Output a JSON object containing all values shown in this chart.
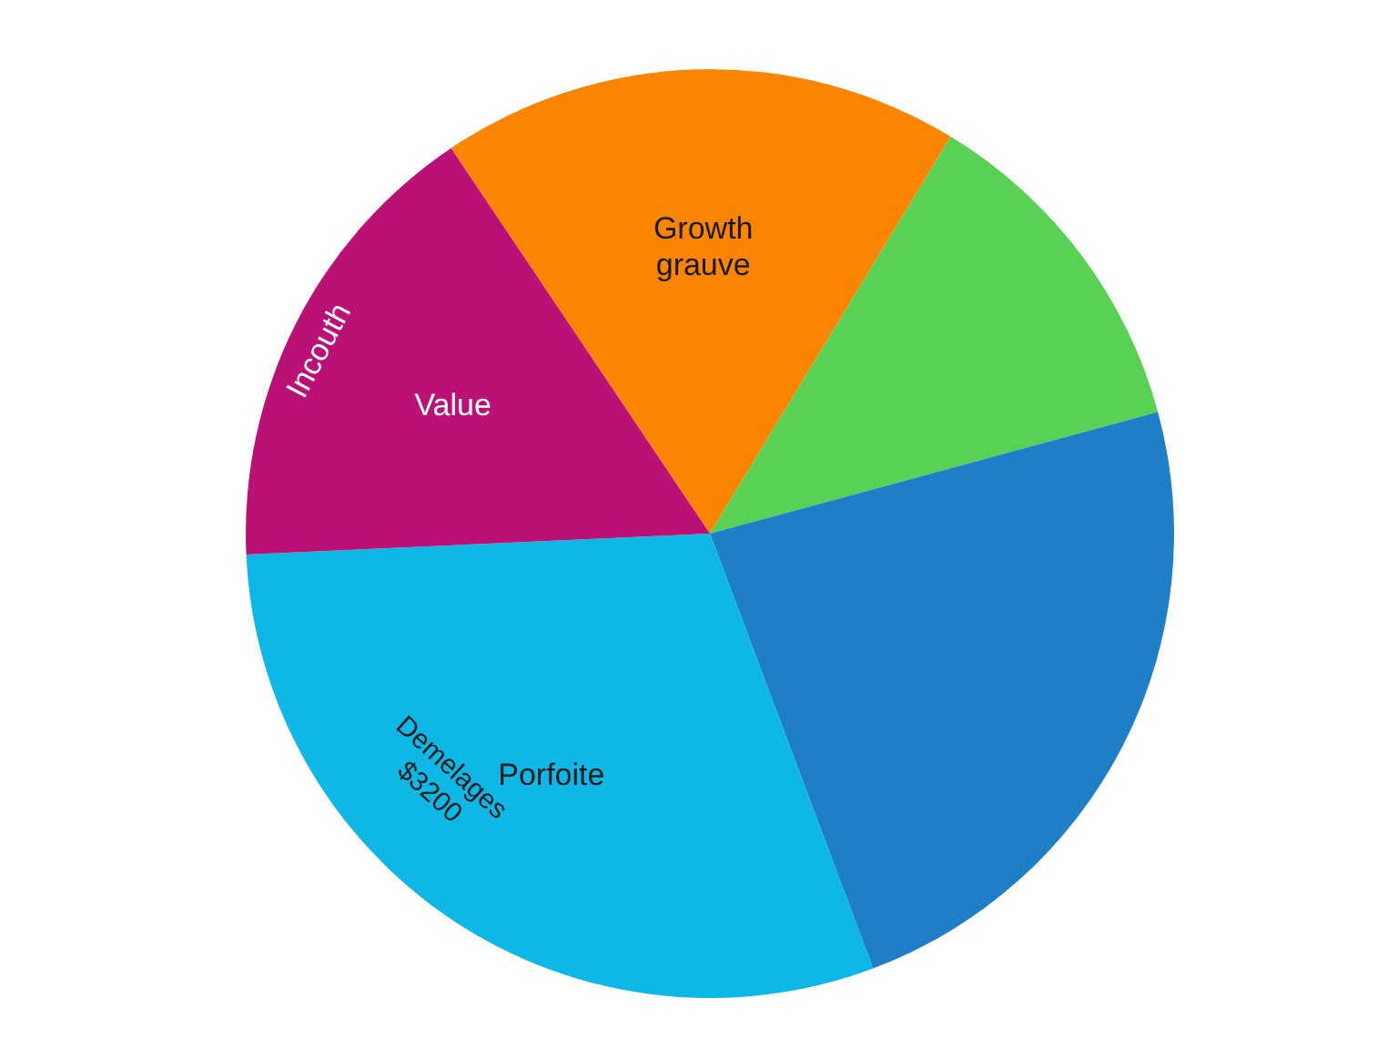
{
  "chart_data": {
    "type": "pie",
    "categories": [
      "Growth grauve",
      null,
      null,
      "Porfoite",
      "Value"
    ],
    "values": [
      18.1,
      12.1,
      23.5,
      30,
      16.3
    ],
    "colors": [
      "#fb8500",
      "#58d154",
      "#1f7ec8",
      "#0db7e6",
      "#bb1177"
    ],
    "annotations": [
      "Incouth",
      "Demelages $3200"
    ]
  }
}
